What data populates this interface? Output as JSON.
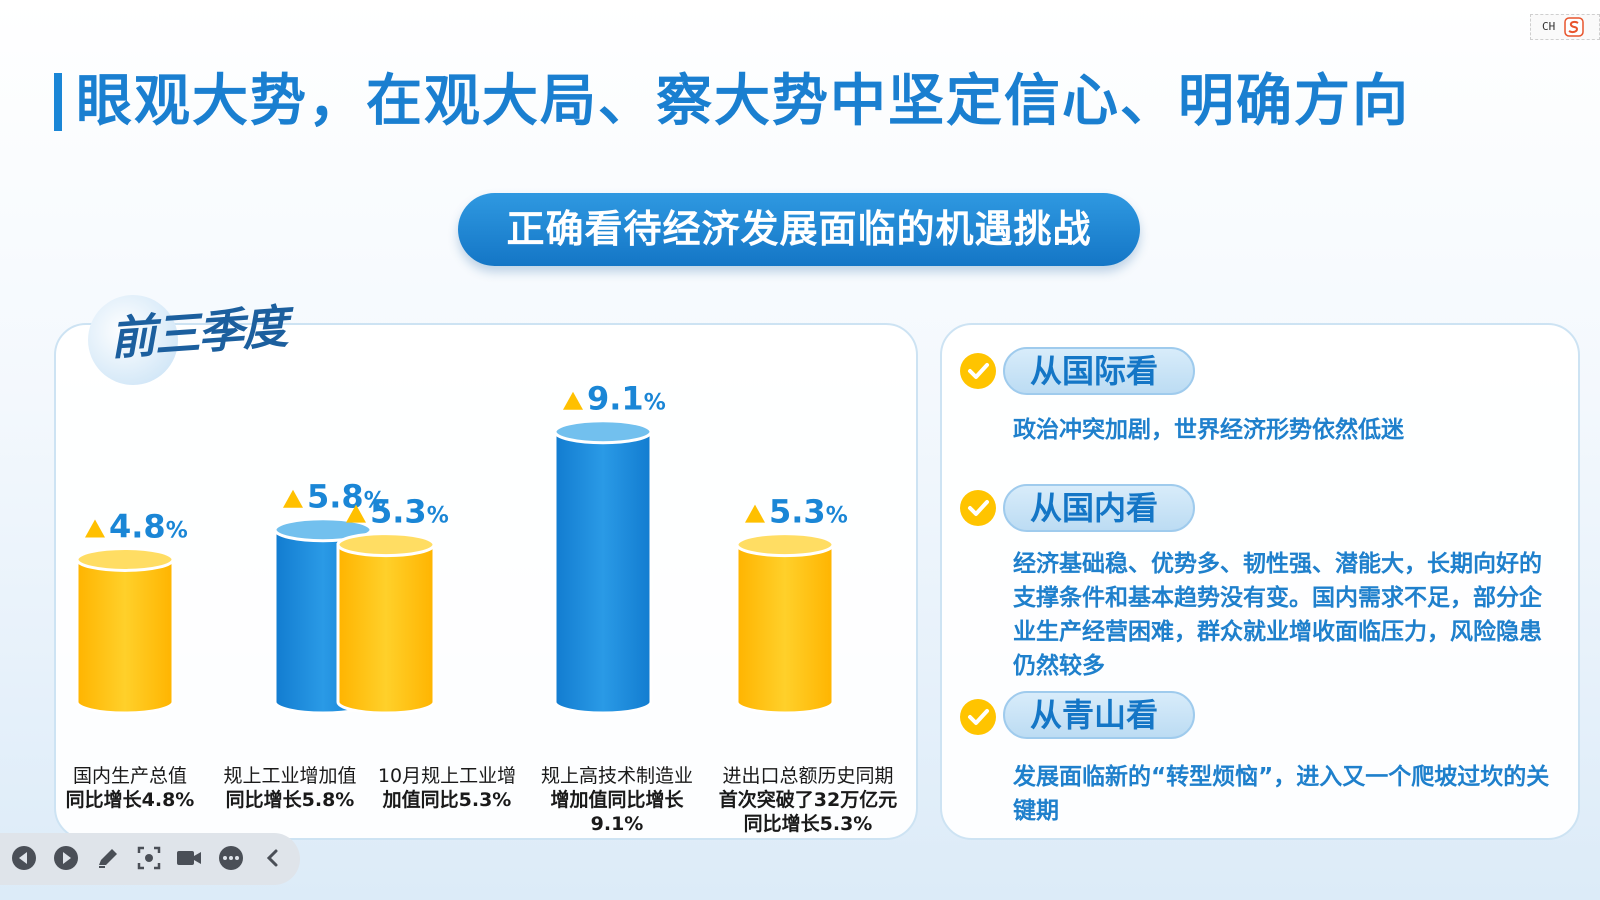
{
  "title": "眼观大势，在观大局、察大势中坚定信心、明确方向",
  "subtitle": "正确看待经济发展面临的机遇挑战",
  "badge": "前三季度",
  "colors": {
    "accent": "#1a86d6",
    "gold": "#ffc400",
    "blue_bar": "#1a8ad9",
    "text_blue": "#1f80cc"
  },
  "chart_data": {
    "type": "bar",
    "style": "3d-cylinder",
    "unit": "%",
    "bars": [
      {
        "value": 4.8,
        "label": "4.8",
        "color": "gold"
      },
      {
        "value": 5.8,
        "label": "5.8",
        "color": "blue"
      },
      {
        "value": 5.3,
        "label": "5.3",
        "color": "gold"
      },
      {
        "value": 9.1,
        "label": "9.1",
        "color": "blue"
      },
      {
        "value": 5.3,
        "label": "5.3",
        "color": "gold"
      }
    ],
    "categories": [
      {
        "line1": "国内生产总值",
        "line2": "同比增长4.8%",
        "line3": ""
      },
      {
        "line1": "规上工业增加值",
        "line2": "同比增长5.8%",
        "line3": ""
      },
      {
        "line1": "10月规上工业增",
        "line2": "加值同比5.3%",
        "line3": ""
      },
      {
        "line1": "规上高技术制造业",
        "line2": "增加值同比增长",
        "line3": "9.1%"
      },
      {
        "line1": "进出口总额历史同期",
        "line2": "首次突破了32万亿元",
        "line3": "同比增长5.3%"
      }
    ]
  },
  "perspectives": [
    {
      "tag": "从国际看",
      "text": "政治冲突加剧，世界经济形势依然低迷"
    },
    {
      "tag": "从国内看",
      "text": "经济基础稳、优势多、韧性强、潜能大，长期向好的支撑条件和基本趋势没有变。国内需求不足，部分企业生产经营困难，群众就业增收面临压力，风险隐患仍然较多"
    },
    {
      "tag": "从青山看",
      "text": "发展面临新的“转型烦恼”，进入又一个爬坡过坎的关键期"
    }
  ],
  "tray": {
    "lang": "CH",
    "ime_icon": "sogou-ime-icon"
  },
  "toolbar": [
    "prev-icon",
    "next-icon",
    "pen-icon",
    "screenshot-icon",
    "camera-icon",
    "more-icon",
    "collapse-icon"
  ]
}
